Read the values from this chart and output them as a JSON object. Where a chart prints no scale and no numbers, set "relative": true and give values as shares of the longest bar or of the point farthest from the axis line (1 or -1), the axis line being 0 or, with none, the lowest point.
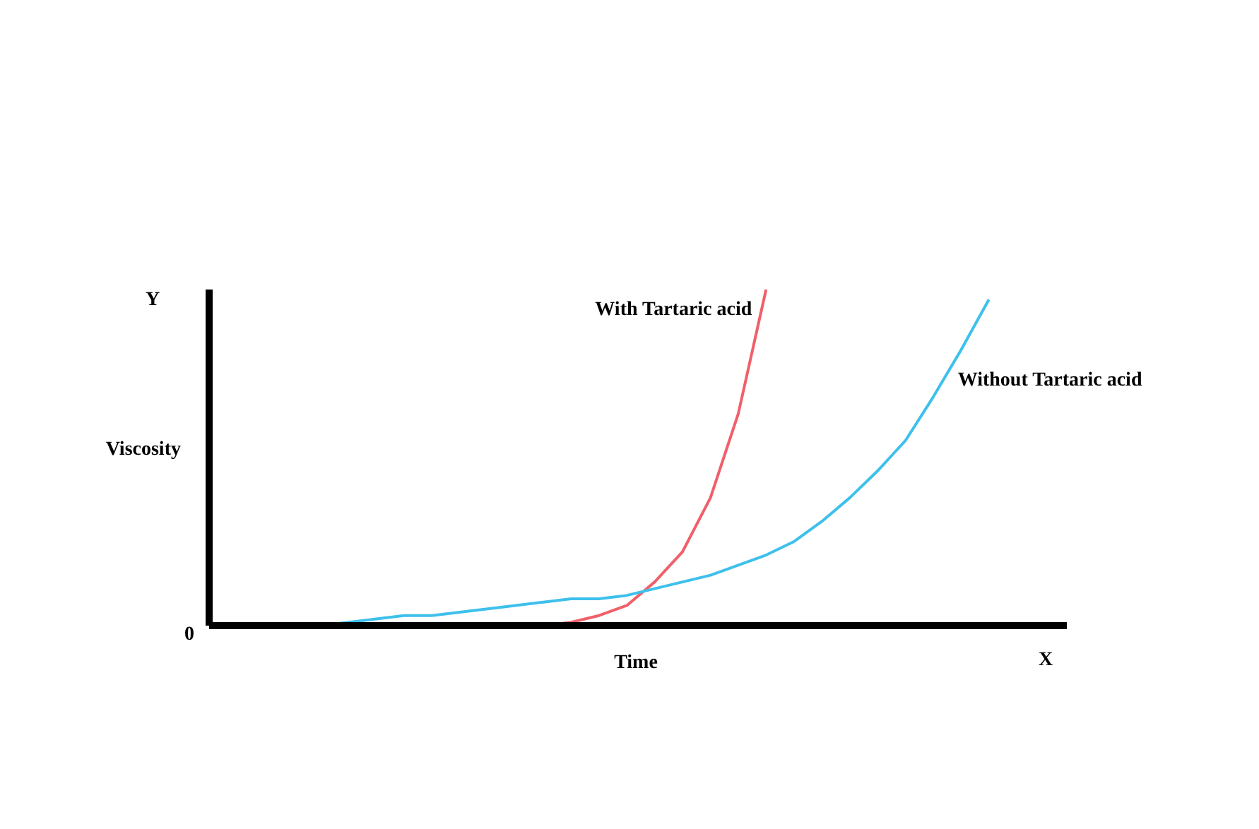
{
  "chart_data": {
    "type": "line",
    "relative": true,
    "xlabel": "Time",
    "ylabel": "Viscosity",
    "annotations": [
      "Y",
      "X",
      "0"
    ],
    "categories": [
      null,
      null,
      null,
      null,
      null,
      null,
      null,
      null,
      null,
      null,
      null,
      null,
      null,
      null,
      null,
      null,
      null,
      null,
      null,
      null,
      null,
      null,
      null,
      null,
      null,
      null,
      null,
      null,
      null,
      null,
      null
    ],
    "series": [
      {
        "name": "With Tartaric acid",
        "color": "#f0606a",
        "values": [
          null,
          null,
          null,
          null,
          null,
          null,
          null,
          null,
          null,
          null,
          null,
          null,
          0.0,
          0.01,
          0.03,
          0.06,
          0.13,
          0.22,
          0.38,
          0.63,
          1.0,
          null,
          null,
          null,
          null,
          null,
          null,
          null,
          null,
          null,
          null
        ]
      },
      {
        "name": "Without Tartaric acid",
        "color": "#3ec0ec",
        "values": [
          null,
          null,
          null,
          null,
          0.0,
          0.01,
          0.02,
          0.03,
          0.03,
          0.04,
          0.05,
          0.06,
          0.07,
          0.08,
          0.08,
          0.09,
          0.11,
          0.13,
          0.15,
          0.18,
          0.21,
          0.25,
          0.31,
          0.38,
          0.46,
          0.55,
          0.68,
          0.82,
          0.97,
          null,
          null
        ]
      }
    ],
    "marker": "none",
    "line_style": "solid"
  }
}
